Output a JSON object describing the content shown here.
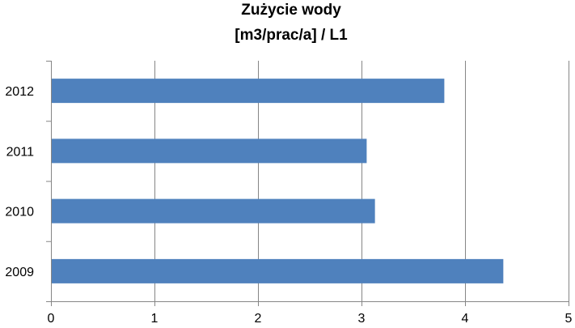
{
  "chart_data": {
    "type": "bar",
    "orientation": "horizontal",
    "title_lines": [
      "Zużycie wody",
      "[m3/prac/a] / L1"
    ],
    "categories": [
      "2012",
      "2011",
      "2010",
      "2009"
    ],
    "values": [
      3.8,
      3.05,
      3.13,
      4.37
    ],
    "xlim": [
      0,
      5
    ],
    "x_ticks": [
      "0",
      "1",
      "2",
      "3",
      "4",
      "5"
    ],
    "xlabel": "",
    "ylabel": "",
    "grid": "vertical",
    "legend": "none",
    "bar_color": "#4F81BD",
    "grid_color": "#868686"
  }
}
